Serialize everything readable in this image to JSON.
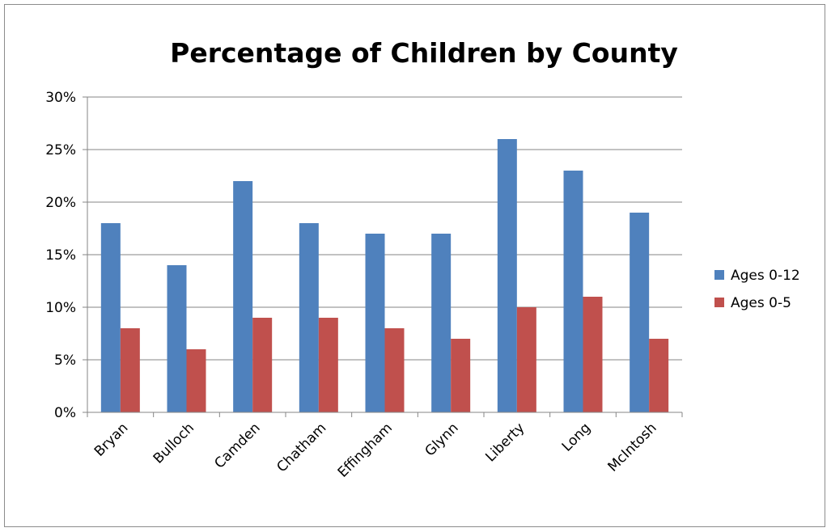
{
  "chart_data": {
    "type": "bar",
    "title": "Percentage of Children by County",
    "xlabel": "",
    "ylabel": "",
    "categories": [
      "Bryan",
      "Bulloch",
      "Camden",
      "Chatham",
      "Effingham",
      "Glynn",
      "Liberty",
      "Long",
      "McIntosh"
    ],
    "series": [
      {
        "name": "Ages 0-12",
        "color": "#4f81bd",
        "values": [
          18,
          14,
          22,
          18,
          17,
          17,
          26,
          23,
          19
        ]
      },
      {
        "name": "Ages 0-5",
        "color": "#c0504d",
        "values": [
          8,
          6,
          9,
          9,
          8,
          7,
          10,
          11,
          7
        ]
      }
    ],
    "ylim": [
      0,
      30
    ],
    "yticks": [
      0,
      5,
      10,
      15,
      20,
      25,
      30
    ],
    "ytick_labels": [
      "0%",
      "5%",
      "10%",
      "15%",
      "20%",
      "25%",
      "30%"
    ],
    "grid": true,
    "legend_position": "right"
  }
}
